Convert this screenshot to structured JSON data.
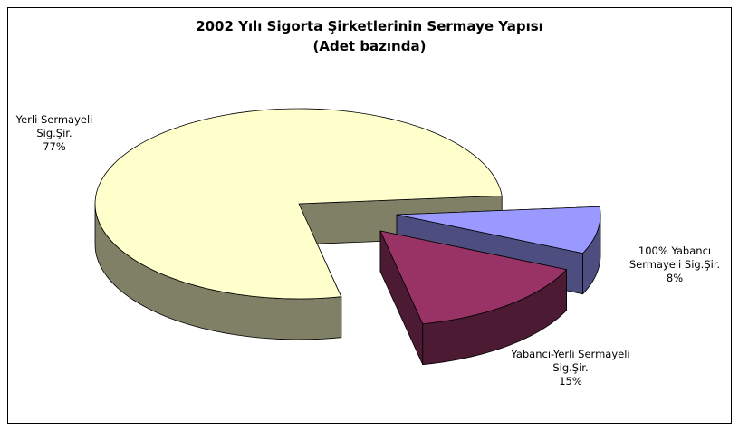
{
  "chart_data": {
    "type": "pie",
    "title": "2002 Yılı Sigorta Şirketlerinin Sermaye Yapısı",
    "subtitle": "(Adet bazında)",
    "categories": [
      "Yerli Sermayeli Sig.Şir.",
      "100% Yabancı Sermayeli Sig.Şir.",
      "Yabancı-Yerli Sermayeli Sig.Şir."
    ],
    "values": [
      77,
      8,
      15
    ],
    "value_labels": [
      "77%",
      "8%",
      "15%"
    ],
    "colors": [
      "#ffffcc",
      "#9999ff",
      "#993366"
    ]
  }
}
